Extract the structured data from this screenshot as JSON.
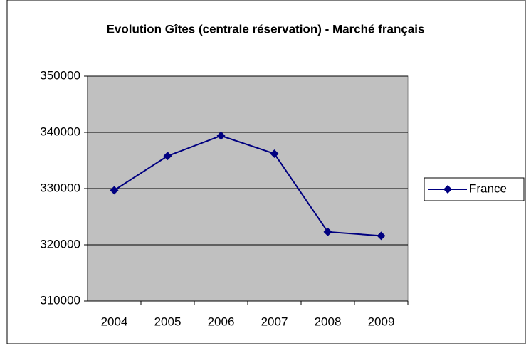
{
  "chart_data": {
    "type": "line",
    "title": "Evolution Gîtes (centrale réservation) - Marché français",
    "categories": [
      "2004",
      "2005",
      "2006",
      "2007",
      "2008",
      "2009"
    ],
    "series": [
      {
        "name": "France",
        "color": "#000080",
        "values": [
          329700,
          335800,
          339400,
          336200,
          322300,
          321600
        ]
      }
    ],
    "ylim": [
      310000,
      350000
    ],
    "yticks": [
      310000,
      320000,
      330000,
      340000,
      350000
    ],
    "grid": true,
    "legend": "right"
  }
}
